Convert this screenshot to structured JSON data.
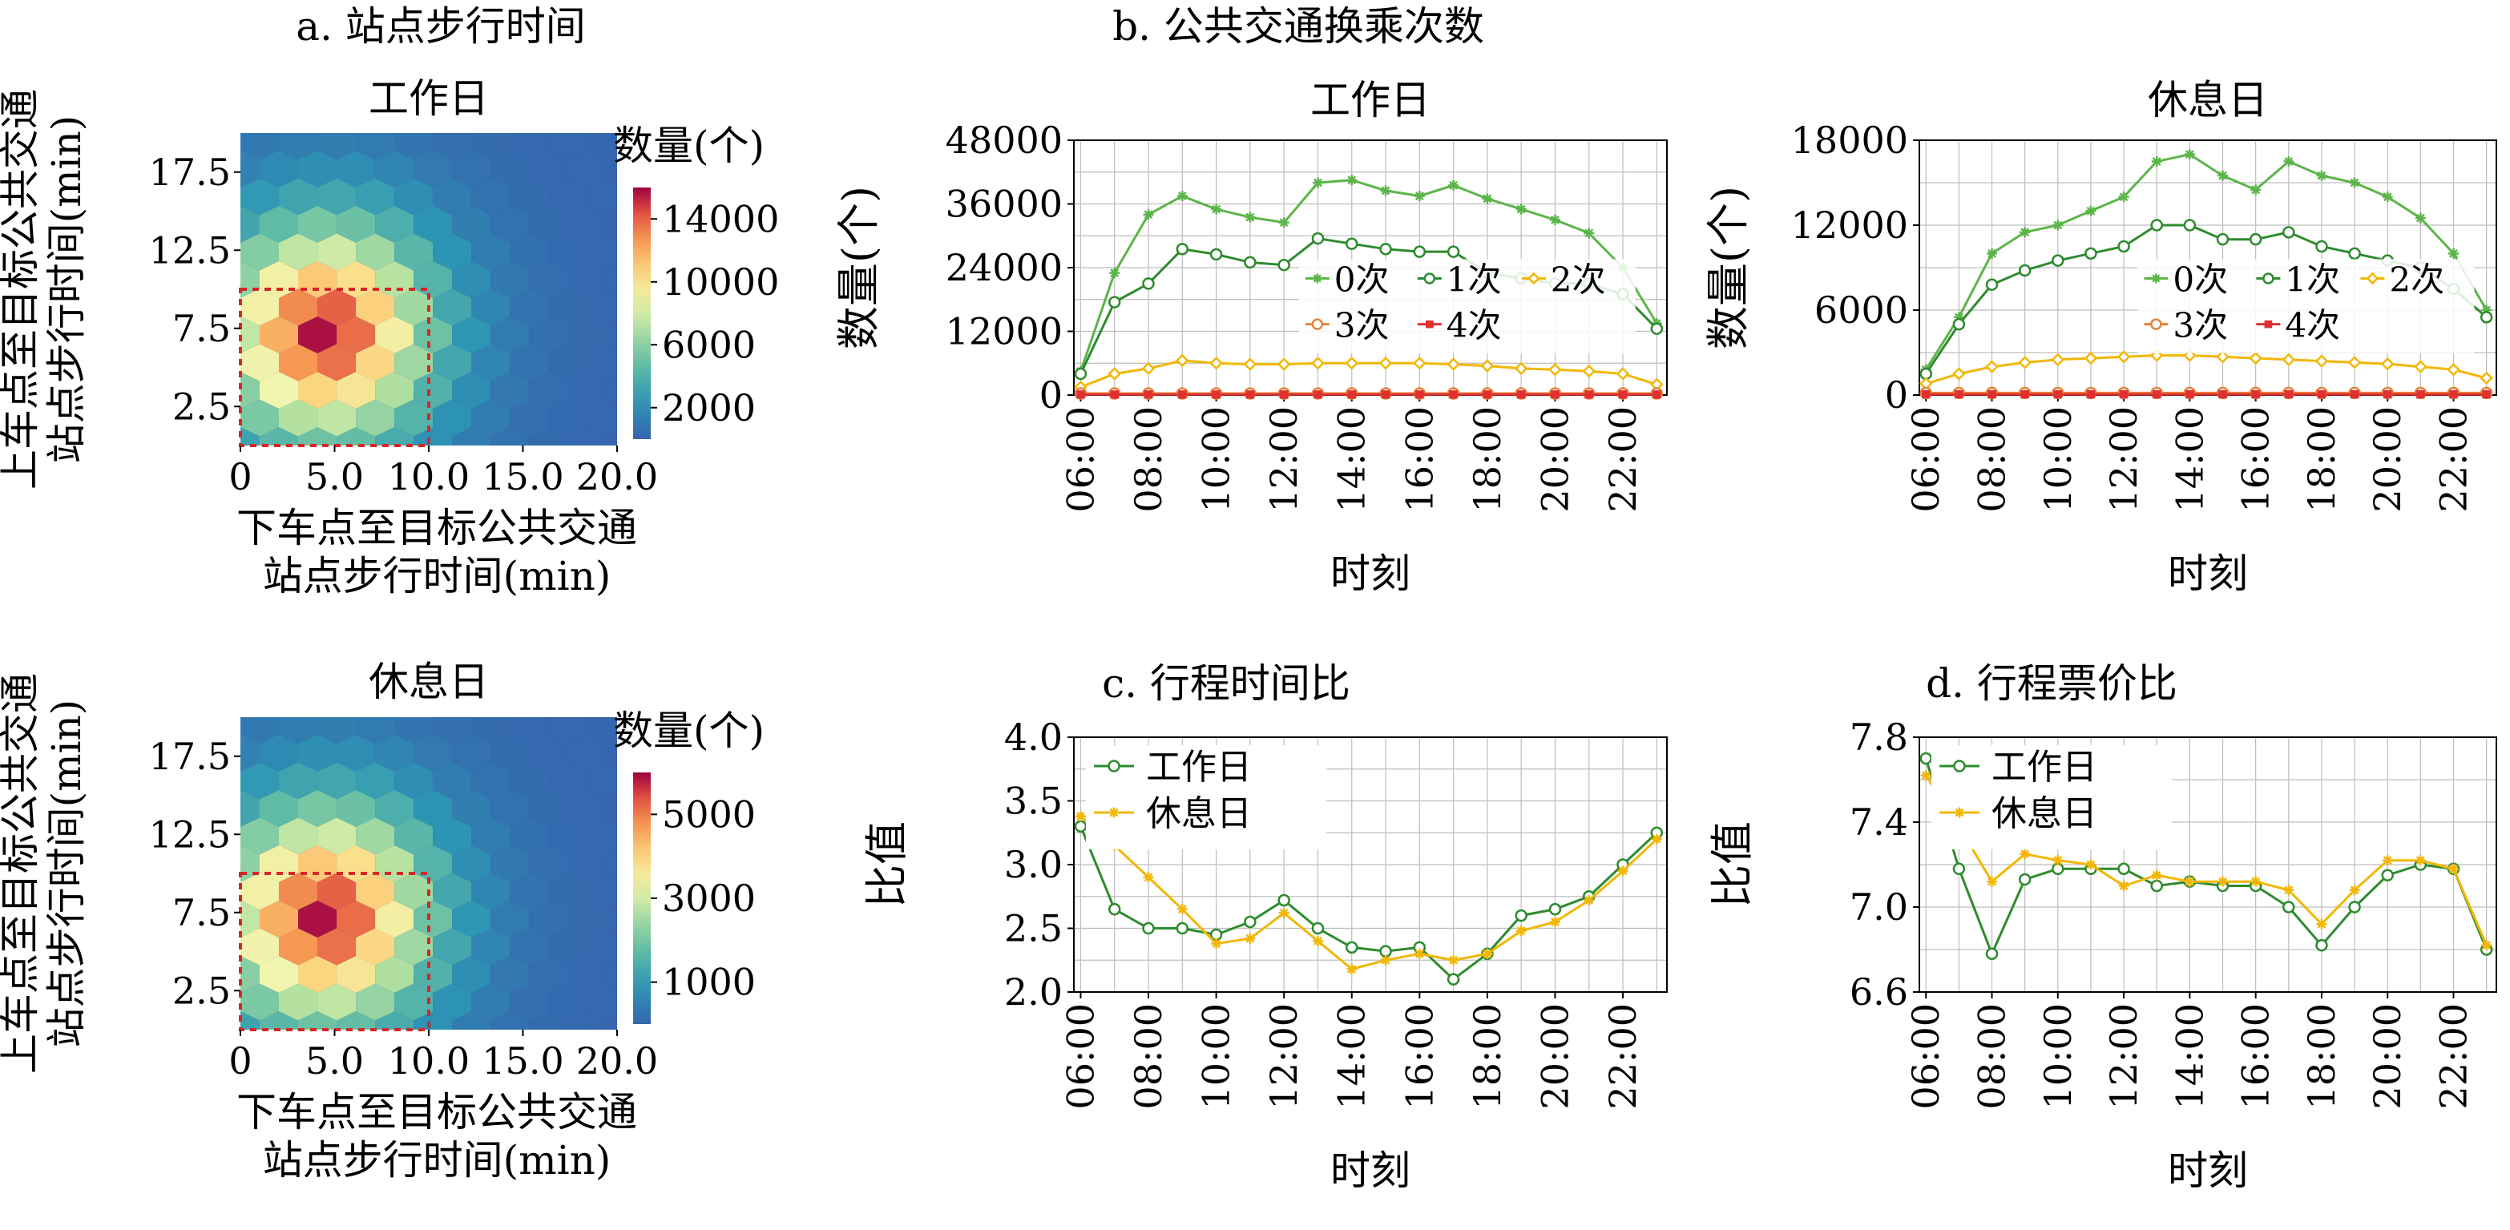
{
  "panel_titles": {
    "a": "a. 站点步行时间",
    "b": "b. 公共交通换乘次数",
    "c": "c. 行程时间比",
    "d": "d. 行程票价比"
  },
  "colors": {
    "zero": "#5cb54a",
    "one": "#2e8b2e",
    "two": "#f2b705",
    "three": "#e8833a",
    "four": "#e03030",
    "grid": "#bdbdbd",
    "box": "#d62728"
  },
  "chart_data": [
    {
      "id": "hex-weekday",
      "type": "heatmap",
      "title": "工作日",
      "xlabel": [
        "下车点至目标公共交通",
        "站点步行时间(min)"
      ],
      "ylabel": [
        "上车点至目标公共交通",
        "站点步行时间(min)"
      ],
      "xlim": [
        0,
        20
      ],
      "ylim": [
        0,
        20
      ],
      "xticks": [
        "0",
        "5.0",
        "10.0",
        "15.0",
        "20.0"
      ],
      "yticks": [
        "2.5",
        "7.5",
        "12.5",
        "17.5"
      ],
      "colorbar_label": "数量(个)",
      "colorbar_ticks": [
        "2000",
        "6000",
        "10000",
        "14000"
      ],
      "colorbar_range": [
        0,
        16000
      ],
      "peak": 16000,
      "highlight_box": {
        "x": [
          0,
          10
        ],
        "y": [
          0,
          10
        ]
      }
    },
    {
      "id": "hex-weekend",
      "type": "heatmap",
      "title": "休息日",
      "xlabel": [
        "下车点至目标公共交通",
        "站点步行时间(min)"
      ],
      "ylabel": [
        "上车点至目标公共交通",
        "站点步行时间(min)"
      ],
      "xlim": [
        0,
        20
      ],
      "ylim": [
        0,
        20
      ],
      "xticks": [
        "0",
        "5.0",
        "10.0",
        "15.0",
        "20.0"
      ],
      "yticks": [
        "2.5",
        "7.5",
        "12.5",
        "17.5"
      ],
      "colorbar_label": "数量(个)",
      "colorbar_ticks": [
        "1000",
        "3000",
        "5000"
      ],
      "colorbar_range": [
        0,
        6000
      ],
      "peak": 6000,
      "highlight_box": {
        "x": [
          0,
          10
        ],
        "y": [
          0,
          10
        ]
      }
    },
    {
      "id": "transfer-weekday",
      "type": "line",
      "title": "工作日",
      "xlabel": "时刻",
      "ylabel": "数量(个)",
      "x": [
        6,
        7,
        8,
        9,
        10,
        11,
        12,
        13,
        14,
        15,
        16,
        17,
        18,
        19,
        20,
        21,
        22,
        23
      ],
      "xticks": [
        "06:00",
        "08:00",
        "10:00",
        "12:00",
        "14:00",
        "16:00",
        "18:00",
        "20:00",
        "22:00"
      ],
      "ylim": [
        0,
        48000
      ],
      "yticks": [
        "0",
        "12000",
        "24000",
        "36000",
        "48000"
      ],
      "series": [
        {
          "name": "0次",
          "marker": "star",
          "values": [
            4500,
            23000,
            34000,
            37500,
            35000,
            33500,
            32500,
            40000,
            40500,
            38500,
            37500,
            39500,
            37000,
            35000,
            33000,
            30500,
            24000,
            13500
          ]
        },
        {
          "name": "1次",
          "marker": "circle",
          "values": [
            4000,
            17500,
            21000,
            27500,
            26500,
            25000,
            24500,
            29500,
            28500,
            27500,
            27000,
            27000,
            23000,
            22000,
            21000,
            21000,
            19000,
            12500
          ]
        },
        {
          "name": "2次",
          "marker": "diamond",
          "values": [
            1500,
            4000,
            5000,
            6500,
            6000,
            5800,
            5800,
            6000,
            6000,
            6000,
            6000,
            5800,
            5500,
            5000,
            4800,
            4500,
            4000,
            2000
          ]
        },
        {
          "name": "3次",
          "marker": "circle",
          "values": [
            300,
            300,
            300,
            300,
            300,
            300,
            300,
            300,
            300,
            300,
            300,
            300,
            300,
            300,
            300,
            300,
            300,
            300
          ]
        },
        {
          "name": "4次",
          "marker": "square",
          "values": [
            100,
            100,
            100,
            100,
            100,
            100,
            100,
            100,
            100,
            100,
            100,
            100,
            100,
            100,
            100,
            100,
            100,
            100
          ]
        }
      ],
      "legend": "center-right"
    },
    {
      "id": "transfer-weekend",
      "type": "line",
      "title": "休息日",
      "xlabel": "时刻",
      "ylabel": "数量(个)",
      "x": [
        6,
        7,
        8,
        9,
        10,
        11,
        12,
        13,
        14,
        15,
        16,
        17,
        18,
        19,
        20,
        21,
        22,
        23
      ],
      "xticks": [
        "06:00",
        "08:00",
        "10:00",
        "12:00",
        "14:00",
        "16:00",
        "18:00",
        "20:00",
        "22:00"
      ],
      "ylim": [
        0,
        18000
      ],
      "yticks": [
        "0",
        "6000",
        "12000",
        "18000"
      ],
      "series": [
        {
          "name": "0次",
          "marker": "star",
          "values": [
            1800,
            5500,
            10000,
            11500,
            12000,
            13000,
            14000,
            16500,
            17000,
            15500,
            14500,
            16500,
            15500,
            15000,
            14000,
            12500,
            10000,
            6000
          ]
        },
        {
          "name": "1次",
          "marker": "circle",
          "values": [
            1500,
            5000,
            7800,
            8800,
            9500,
            10000,
            10500,
            12000,
            12000,
            11000,
            11000,
            11500,
            10500,
            10000,
            9500,
            9000,
            7500,
            5500
          ]
        },
        {
          "name": "2次",
          "marker": "diamond",
          "values": [
            800,
            1500,
            2000,
            2300,
            2500,
            2600,
            2700,
            2800,
            2800,
            2700,
            2600,
            2500,
            2400,
            2300,
            2200,
            2000,
            1800,
            1200
          ]
        },
        {
          "name": "3次",
          "marker": "circle",
          "values": [
            150,
            150,
            150,
            150,
            150,
            150,
            150,
            150,
            150,
            150,
            150,
            150,
            150,
            150,
            150,
            150,
            150,
            150
          ]
        },
        {
          "name": "4次",
          "marker": "square",
          "values": [
            50,
            50,
            50,
            50,
            50,
            50,
            50,
            50,
            50,
            50,
            50,
            50,
            50,
            50,
            50,
            50,
            50,
            50
          ]
        }
      ],
      "legend": "center-right"
    },
    {
      "id": "time-ratio",
      "type": "line",
      "title": "",
      "xlabel": "时刻",
      "ylabel": "比值",
      "x": [
        6,
        7,
        8,
        9,
        10,
        11,
        12,
        13,
        14,
        15,
        16,
        17,
        18,
        19,
        20,
        21,
        22,
        23
      ],
      "xticks": [
        "06:00",
        "08:00",
        "10:00",
        "12:00",
        "14:00",
        "16:00",
        "18:00",
        "20:00",
        "22:00"
      ],
      "ylim": [
        2.0,
        4.0
      ],
      "yticks": [
        "2.0",
        "2.5",
        "3.0",
        "3.5",
        "4.0"
      ],
      "series": [
        {
          "name": "工作日",
          "marker": "circle",
          "values": [
            3.3,
            2.65,
            2.5,
            2.5,
            2.45,
            2.55,
            2.72,
            2.5,
            2.35,
            2.32,
            2.35,
            2.1,
            2.3,
            2.6,
            2.65,
            2.75,
            3.0,
            3.25
          ]
        },
        {
          "name": "休息日",
          "marker": "star",
          "values": [
            3.38,
            3.15,
            2.9,
            2.65,
            2.38,
            2.42,
            2.62,
            2.4,
            2.18,
            2.25,
            2.3,
            2.25,
            2.3,
            2.48,
            2.55,
            2.72,
            2.95,
            3.2
          ]
        }
      ],
      "legend": "top-left"
    },
    {
      "id": "fare-ratio",
      "type": "line",
      "title": "",
      "xlabel": "时刻",
      "ylabel": "比值",
      "x": [
        6,
        7,
        8,
        9,
        10,
        11,
        12,
        13,
        14,
        15,
        16,
        17,
        18,
        19,
        20,
        21,
        22,
        23
      ],
      "xticks": [
        "06:00",
        "08:00",
        "10:00",
        "12:00",
        "14:00",
        "16:00",
        "18:00",
        "20:00",
        "22:00"
      ],
      "ylim": [
        6.6,
        7.8
      ],
      "yticks": [
        "6.6",
        "7.0",
        "7.4",
        "7.8"
      ],
      "series": [
        {
          "name": "工作日",
          "marker": "circle",
          "values": [
            7.7,
            7.18,
            6.78,
            7.13,
            7.18,
            7.18,
            7.18,
            7.1,
            7.12,
            7.1,
            7.1,
            7.0,
            6.82,
            7.0,
            7.15,
            7.2,
            7.18,
            6.8
          ]
        },
        {
          "name": "休息日",
          "marker": "star",
          "values": [
            7.62,
            7.38,
            7.12,
            7.25,
            7.22,
            7.2,
            7.1,
            7.15,
            7.12,
            7.12,
            7.12,
            7.08,
            6.92,
            7.08,
            7.22,
            7.22,
            7.18,
            6.82
          ]
        }
      ],
      "legend": "top-left"
    }
  ]
}
